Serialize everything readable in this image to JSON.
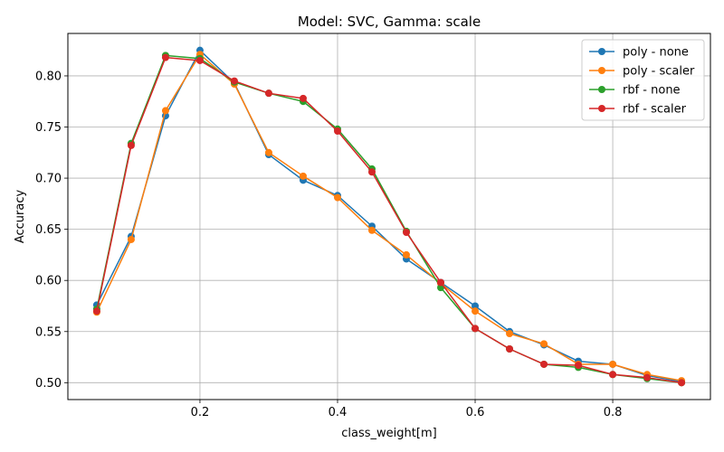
{
  "chart_data": {
    "type": "line",
    "title": "Model: SVC, Gamma: scale",
    "xlabel": "class_weight[m]",
    "ylabel": "Accuracy",
    "xlim": [
      0.008,
      0.942
    ],
    "ylim": [
      0.4835,
      0.8415
    ],
    "xticks": [
      0.2,
      0.4,
      0.6,
      0.8
    ],
    "xtick_labels": [
      "0.2",
      "0.4",
      "0.6",
      "0.8"
    ],
    "yticks": [
      0.5,
      0.55,
      0.6,
      0.65,
      0.7,
      0.75,
      0.8
    ],
    "ytick_labels": [
      "0.50",
      "0.55",
      "0.60",
      "0.65",
      "0.70",
      "0.75",
      "0.80"
    ],
    "grid": true,
    "legend_position": "top-right",
    "x": [
      0.05,
      0.1,
      0.15,
      0.2,
      0.25,
      0.3,
      0.35,
      0.4,
      0.45,
      0.5,
      0.55,
      0.6,
      0.65,
      0.7,
      0.75,
      0.8,
      0.85,
      0.9
    ],
    "series": [
      {
        "name": "poly - none",
        "color": "#1f77b4",
        "values": [
          0.576,
          0.643,
          0.761,
          0.825,
          0.793,
          0.723,
          0.698,
          0.683,
          0.653,
          0.621,
          0.598,
          0.575,
          0.55,
          0.537,
          0.521,
          0.518,
          0.507,
          0.501
        ]
      },
      {
        "name": "poly - scaler",
        "color": "#ff7f0e",
        "values": [
          0.569,
          0.64,
          0.766,
          0.821,
          0.792,
          0.725,
          0.702,
          0.681,
          0.649,
          0.625,
          0.597,
          0.57,
          0.548,
          0.538,
          0.518,
          0.518,
          0.508,
          0.502
        ]
      },
      {
        "name": "rbf - none",
        "color": "#2ca02c",
        "values": [
          0.572,
          0.734,
          0.82,
          0.817,
          0.794,
          0.783,
          0.775,
          0.748,
          0.709,
          0.648,
          0.593,
          0.553,
          0.533,
          0.518,
          0.515,
          0.508,
          0.504,
          0.5
        ]
      },
      {
        "name": "rbf - scaler",
        "color": "#d62728",
        "values": [
          0.57,
          0.732,
          0.818,
          0.815,
          0.795,
          0.783,
          0.778,
          0.746,
          0.706,
          0.647,
          0.598,
          0.553,
          0.533,
          0.518,
          0.517,
          0.508,
          0.505,
          0.5
        ]
      }
    ]
  }
}
